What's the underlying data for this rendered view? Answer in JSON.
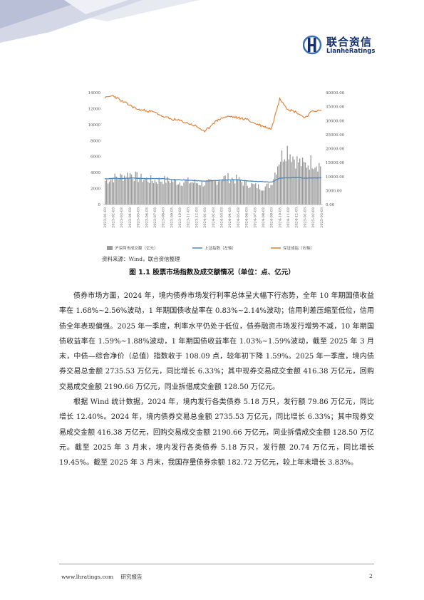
{
  "header": {
    "logo_cn": "联合资信",
    "logo_en": "LianhèRatings",
    "brand_color": "#14306e",
    "accent_color": "#3a6fb0"
  },
  "chart_data": {
    "type": "bar+line",
    "title": "",
    "left_axis": {
      "ticks": [
        "14000",
        "12000",
        "10000",
        "8000",
        "6000",
        "4000",
        "2000",
        "0"
      ],
      "ylim": [
        0,
        14000
      ]
    },
    "right_axis": {
      "ticks": [
        "40000.00",
        "35000.00",
        "30000.00",
        "25000.00",
        "20000.00",
        "15000.00",
        "10000.00",
        "5000.00",
        "0.00"
      ],
      "ylim": [
        0,
        40000
      ]
    },
    "x_ticks": [
      "2023-01-03",
      "2023-02-03",
      "2023-03-03",
      "2023-04-03",
      "2023-05-03",
      "2023-06-03",
      "2023-07-03",
      "2023-08-03",
      "2023-09-03",
      "2023-10-03",
      "2023-11-03",
      "2023-12-03",
      "2024-01-03",
      "2024-02-03",
      "2024-03-03",
      "2024-04-03",
      "2024-05-03",
      "2024-06-03",
      "2024-07-03",
      "2024-08-03",
      "2024-09-03",
      "2024-10-03",
      "2024-11-03",
      "2024-12-03",
      "2025-01-03",
      "2025-02-03",
      "2025-03-03"
    ],
    "series": [
      {
        "name": "沪深两市成交额（亿元）",
        "type": "bar",
        "axis": "right",
        "color": "#9b9b9b",
        "values": [
          8500,
          9500,
          10000,
          11000,
          9500,
          9000,
          8500,
          8800,
          8500,
          8000,
          8200,
          7800,
          7500,
          7800,
          9500,
          9500,
          8800,
          7500,
          6800,
          6000,
          7000,
          16000,
          20000,
          16000,
          14000,
          15500,
          14000
        ]
      },
      {
        "name": "上证指数（左轴）",
        "type": "line",
        "axis": "left",
        "color": "#4a86c5",
        "values": [
          3200,
          3280,
          3250,
          3320,
          3280,
          3230,
          3240,
          3250,
          3130,
          3100,
          3050,
          2980,
          2920,
          3000,
          3050,
          3080,
          3100,
          2960,
          2900,
          2860,
          2800,
          3300,
          3350,
          3380,
          3300,
          3320,
          3350
        ]
      },
      {
        "name": "深证成指（右轴）",
        "type": "line",
        "axis": "right",
        "color": "#e07b2e",
        "values": [
          38000,
          39000,
          37000,
          35500,
          34000,
          33500,
          33000,
          31500,
          30500,
          30000,
          29000,
          28000,
          26000,
          29000,
          31000,
          31500,
          31000,
          30500,
          29000,
          28000,
          27000,
          38000,
          34000,
          33000,
          31000,
          33500,
          33500
        ]
      }
    ]
  },
  "source_note": "资料来源：Wind，联合资信整理",
  "figure_caption": "图 1.1   股票市场指数及成交额情况（单位：点、亿元）",
  "paragraphs": [
    "债券市场方面，2024 年，境内债券市场发行利率总体呈大幅下行态势，全年 10 年期国债收益率在 1.68%~2.56%波动，1 年期国债收益率在 0.83%~2.14%波动；信用利差压缩至低位，信用债全年表现偏强。2025 年一季度，利率水平仍处于低位，债券融资市场发行增势不减，10 年期国债收益率在 1.59%~1.88%波动，1 年期国债收益率在 1.03%~1.59%波动，截至 2025 年 3 月末，中债—综合净价（总值）指数收于 108.09 点，较年初下降 1.59%。2025 年一季度，境内债券交易总金额 2735.53 万亿元，同比增长 6.33%；其中现券交易成交金额 416.38 万亿元，回购交易成交金额 2190.66 万亿元，同业拆借成交金额 128.50 万亿元。",
    "根据 Wind 统计数据，2024 年，境内发行各类债券 5.18 万只，发行额 79.86 万亿元，同比增长 12.40%。2024 年，境内债券交易总金额 2735.53 万亿元，同比增长 6.33%；其中现券交易成交金额 416.38 万亿元，回购交易成交金额 2190.66 万亿元，同业拆借成交金额 128.50 万亿元。截至 2025 年 3 月末，境内发行各类债券 5.18 万只，发行额 20.74 万亿元，同比增长 19.45%。截至 2025 年 3 月末，我国存量债券余额 182.72 万亿元，较上年末增长 3.83%。"
  ],
  "footer": {
    "url": "www.lhratings.com",
    "label": "研究报告",
    "page": "2"
  }
}
